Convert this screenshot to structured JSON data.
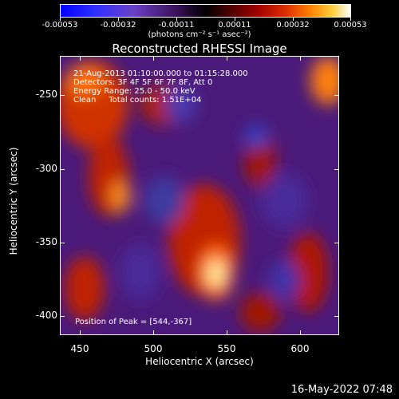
{
  "colorbar": {
    "labels": [
      "-0.00053",
      "-0.00032",
      "-0.00011",
      "0.00011",
      "0.00032",
      "0.00053"
    ],
    "unit": "(photons cm⁻² s⁻¹ asec⁻²)"
  },
  "title": "Reconstructed RHESSI Image",
  "annotations": {
    "line1": "21-Aug-2013 01:10:00.000 to 01:15:28.000",
    "line2": "Detectors: 3F 4F 5F 6F 7F 8F, Att 0",
    "line3": "Energy Range: 25.0 - 50.0 keV",
    "line4": "Clean     Total counts: 1.51E+04",
    "peak": "Position of Peak = [544,-367]"
  },
  "axes": {
    "xlabel": "Heliocentric X (arcsec)",
    "ylabel": "Heliocentric Y (arcsec)",
    "xticks": [
      "450",
      "500",
      "550",
      "600"
    ],
    "yticks": [
      "-250",
      "-300",
      "-350",
      "-400"
    ]
  },
  "timestamp": "16-May-2022 07:48"
}
